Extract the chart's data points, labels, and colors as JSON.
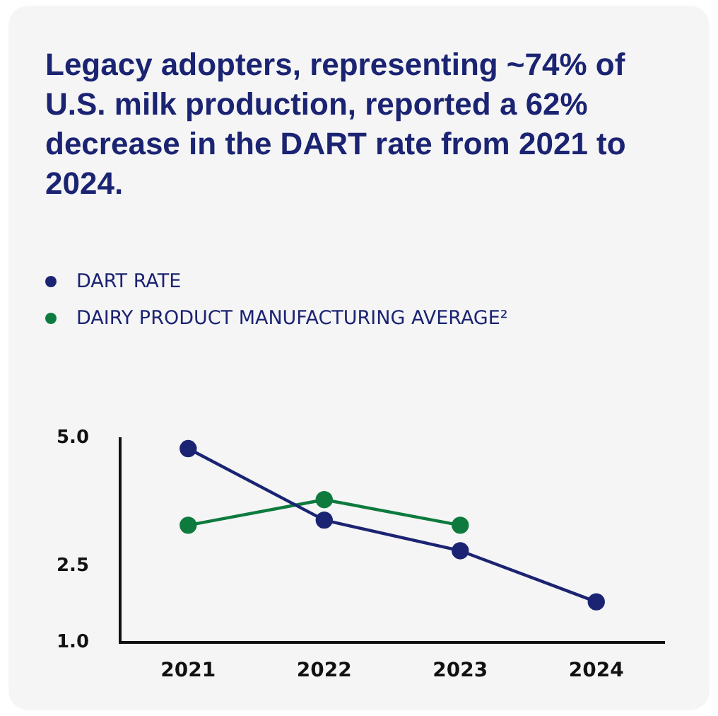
{
  "chart_data": {
    "type": "line",
    "title": "Legacy adopters, representing ~74% of U.S. milk production, reported a 62% decrease in the DART rate from 2021 to 2024.",
    "categories": [
      "2021",
      "2022",
      "2023",
      "2024"
    ],
    "series": [
      {
        "name": "DART RATE",
        "color": "#1b2472",
        "values": [
          4.8,
          3.4,
          2.8,
          1.8
        ]
      },
      {
        "name": "DAIRY PRODUCT MANUFACTURING AVERAGE²",
        "color": "#0e7a3e",
        "values": [
          3.3,
          3.8,
          3.3,
          null
        ]
      }
    ],
    "ylim": [
      1,
      5
    ],
    "yticks": [
      {
        "value": 1,
        "label": "1.0"
      },
      {
        "value": 2.5,
        "label": "2.5"
      },
      {
        "value": 5,
        "label": "5.0"
      }
    ],
    "grid": false,
    "legend": "top left",
    "marker": "circle",
    "line_style": "solid"
  }
}
